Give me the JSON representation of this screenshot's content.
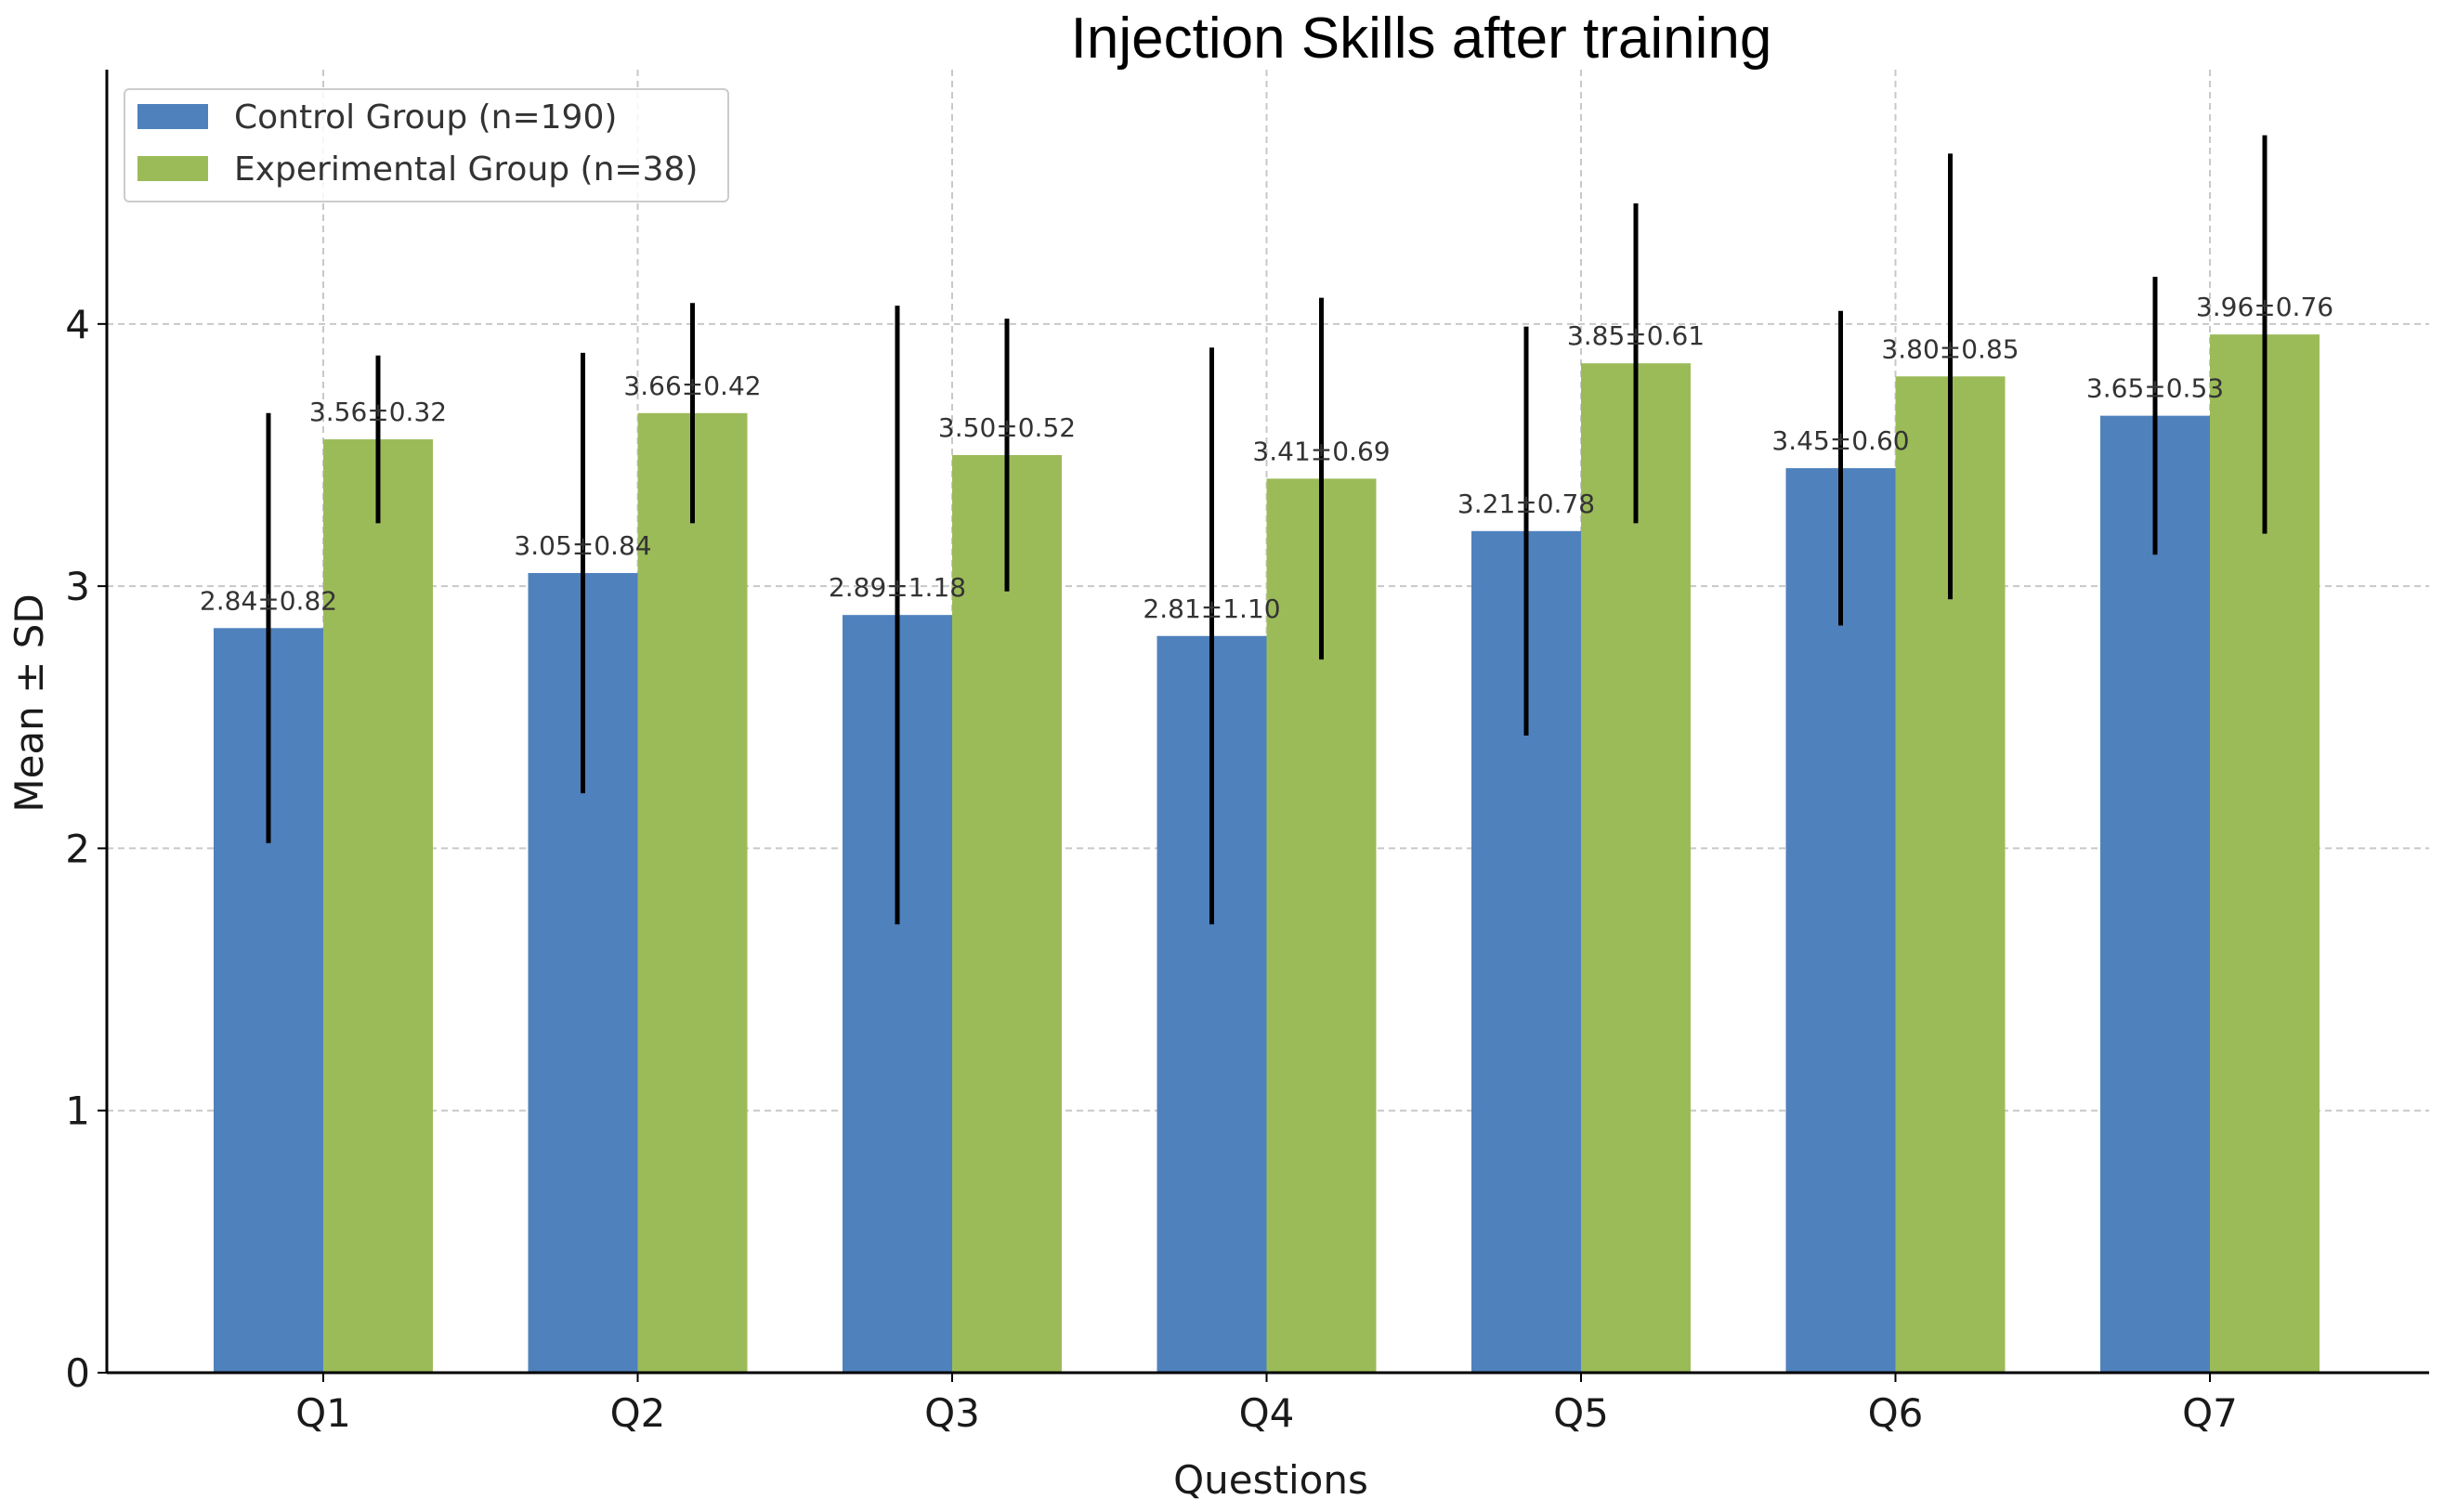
{
  "chart_data": {
    "type": "bar",
    "title": "Injection Skills after training",
    "xlabel": "Questions",
    "ylabel": "Mean ± SD",
    "categories": [
      "Q1",
      "Q2",
      "Q3",
      "Q4",
      "Q5",
      "Q6",
      "Q7"
    ],
    "series": [
      {
        "name": "Control Group (n=190)",
        "color": "#4f81bd",
        "values": [
          2.84,
          3.05,
          2.89,
          2.81,
          3.21,
          3.45,
          3.65
        ],
        "errors": [
          0.82,
          0.84,
          1.18,
          1.1,
          0.78,
          0.6,
          0.53
        ],
        "labels": [
          "2.84±0.82",
          "3.05±0.84",
          "2.89±1.18",
          "2.81±1.10",
          "3.21±0.78",
          "3.45±0.60",
          "3.65±0.53"
        ]
      },
      {
        "name": "Experimental Group (n=38)",
        "color": "#9bbb59",
        "values": [
          3.56,
          3.66,
          3.5,
          3.41,
          3.85,
          3.8,
          3.96
        ],
        "errors": [
          0.32,
          0.42,
          0.52,
          0.69,
          0.61,
          0.85,
          0.76
        ],
        "labels": [
          "3.56±0.32",
          "3.66±0.42",
          "3.50±0.52",
          "3.41±0.69",
          "3.85±0.61",
          "3.80±0.85",
          "3.96±0.76"
        ]
      }
    ],
    "ylim": [
      0,
      4.97
    ],
    "yticks": [
      0,
      1,
      2,
      3,
      4
    ],
    "ytick_labels": [
      "0",
      "1",
      "2",
      "3",
      "4"
    ],
    "grid": true,
    "legend_position": "top-left"
  }
}
